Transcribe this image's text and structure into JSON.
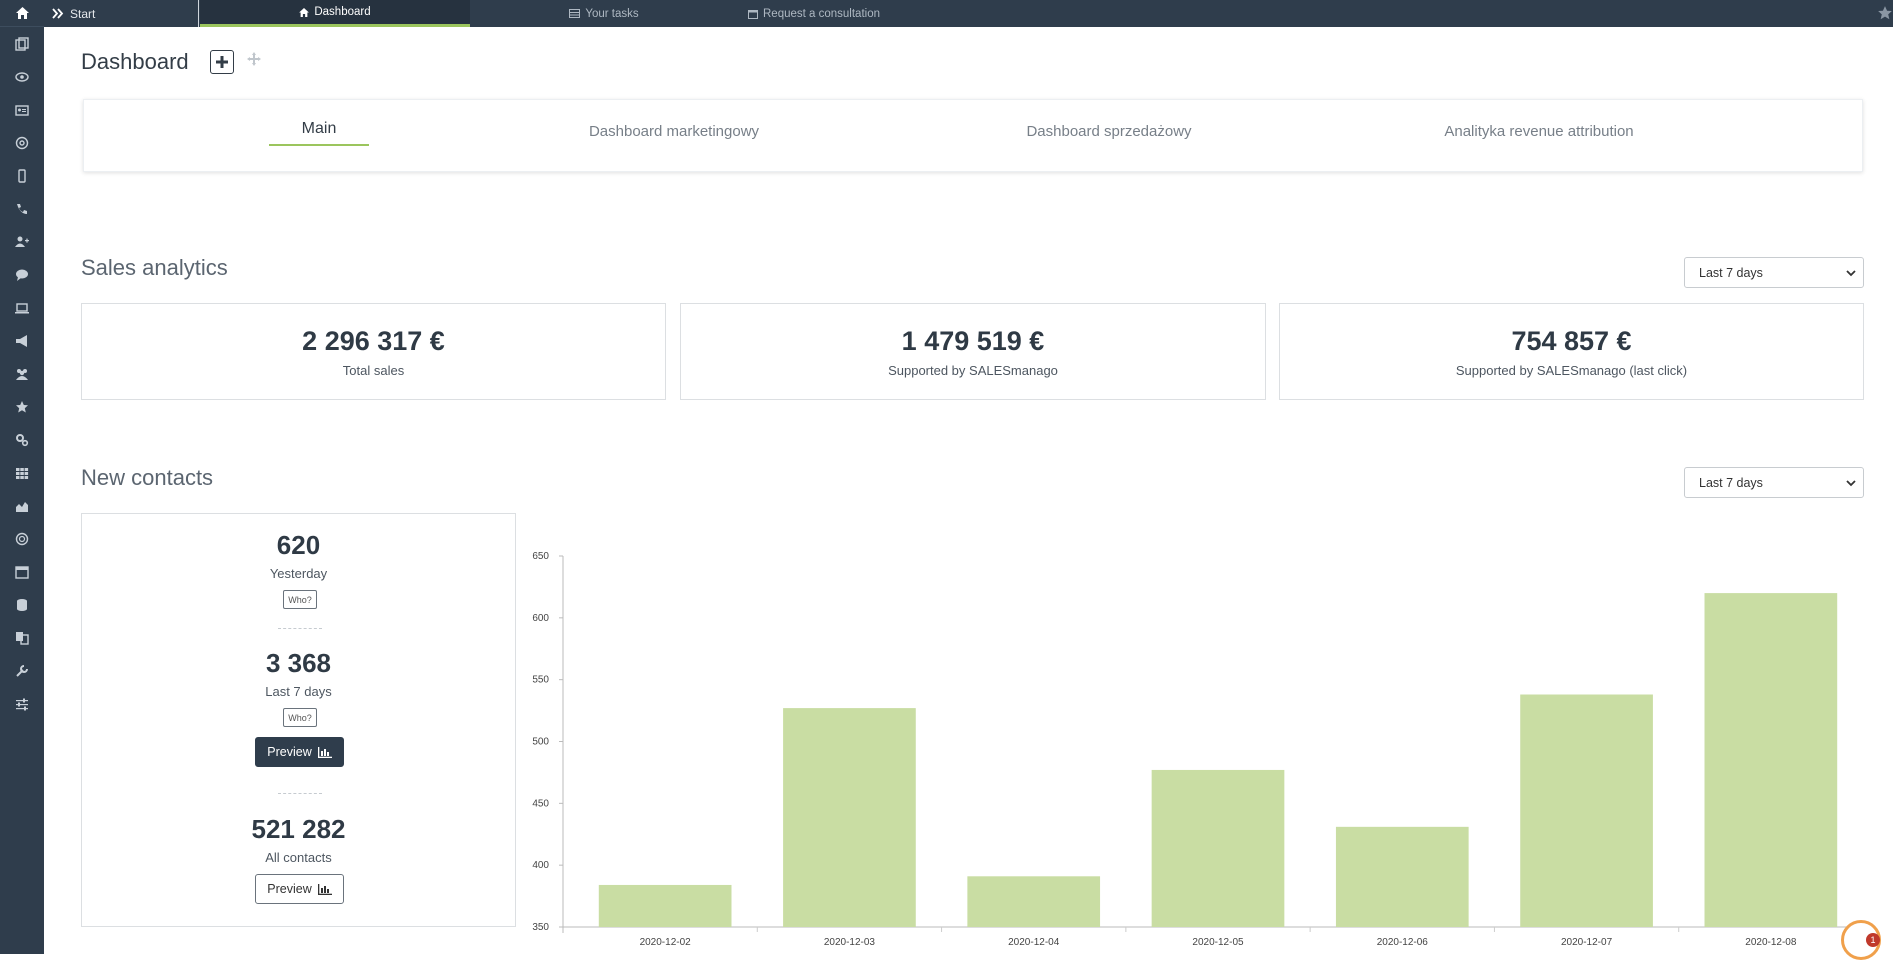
{
  "topbar": {
    "start_label": "Start",
    "tabs": [
      {
        "label": "Dashboard",
        "icon": "home-icon"
      },
      {
        "label": "Your tasks",
        "icon": "table-icon"
      },
      {
        "label": "Request a consultation",
        "icon": "calendar-icon"
      }
    ]
  },
  "page": {
    "title": "Dashboard"
  },
  "dashboard_tabs": [
    {
      "label": "Main"
    },
    {
      "label": "Dashboard marketingowy"
    },
    {
      "label": "Dashboard sprzedażowy"
    },
    {
      "label": "Analityka revenue attribution"
    }
  ],
  "sales": {
    "title": "Sales analytics",
    "period": "Last 7 days",
    "cards": [
      {
        "value": "2 296 317 €",
        "label": "Total sales"
      },
      {
        "value": "1 479 519 €",
        "label": "Supported by SALESmanago"
      },
      {
        "value": "754 857 €",
        "label": "Supported by SALESmanago (last click)"
      }
    ]
  },
  "contacts": {
    "title": "New contacts",
    "period": "Last 7 days",
    "yesterday_value": "620",
    "yesterday_label": "Yesterday",
    "week_value": "3 368",
    "week_label": "Last 7 days",
    "all_value": "521 282",
    "all_label": "All contacts",
    "who_label": "Who?",
    "preview_label": "Preview"
  },
  "colors": {
    "sidebar": "#2f3d4c",
    "accent": "#9bc55d",
    "bar": "#c9dda3"
  },
  "chart_data": {
    "type": "bar",
    "categories": [
      "2020-12-02",
      "2020-12-03",
      "2020-12-04",
      "2020-12-05",
      "2020-12-06",
      "2020-12-07",
      "2020-12-08"
    ],
    "values": [
      384,
      527,
      391,
      477,
      431,
      538,
      620
    ],
    "yticks": [
      350,
      400,
      450,
      500,
      550,
      600,
      650
    ],
    "ylim": [
      350,
      650
    ],
    "title": "",
    "xlabel": "",
    "ylabel": "",
    "grid": false
  }
}
